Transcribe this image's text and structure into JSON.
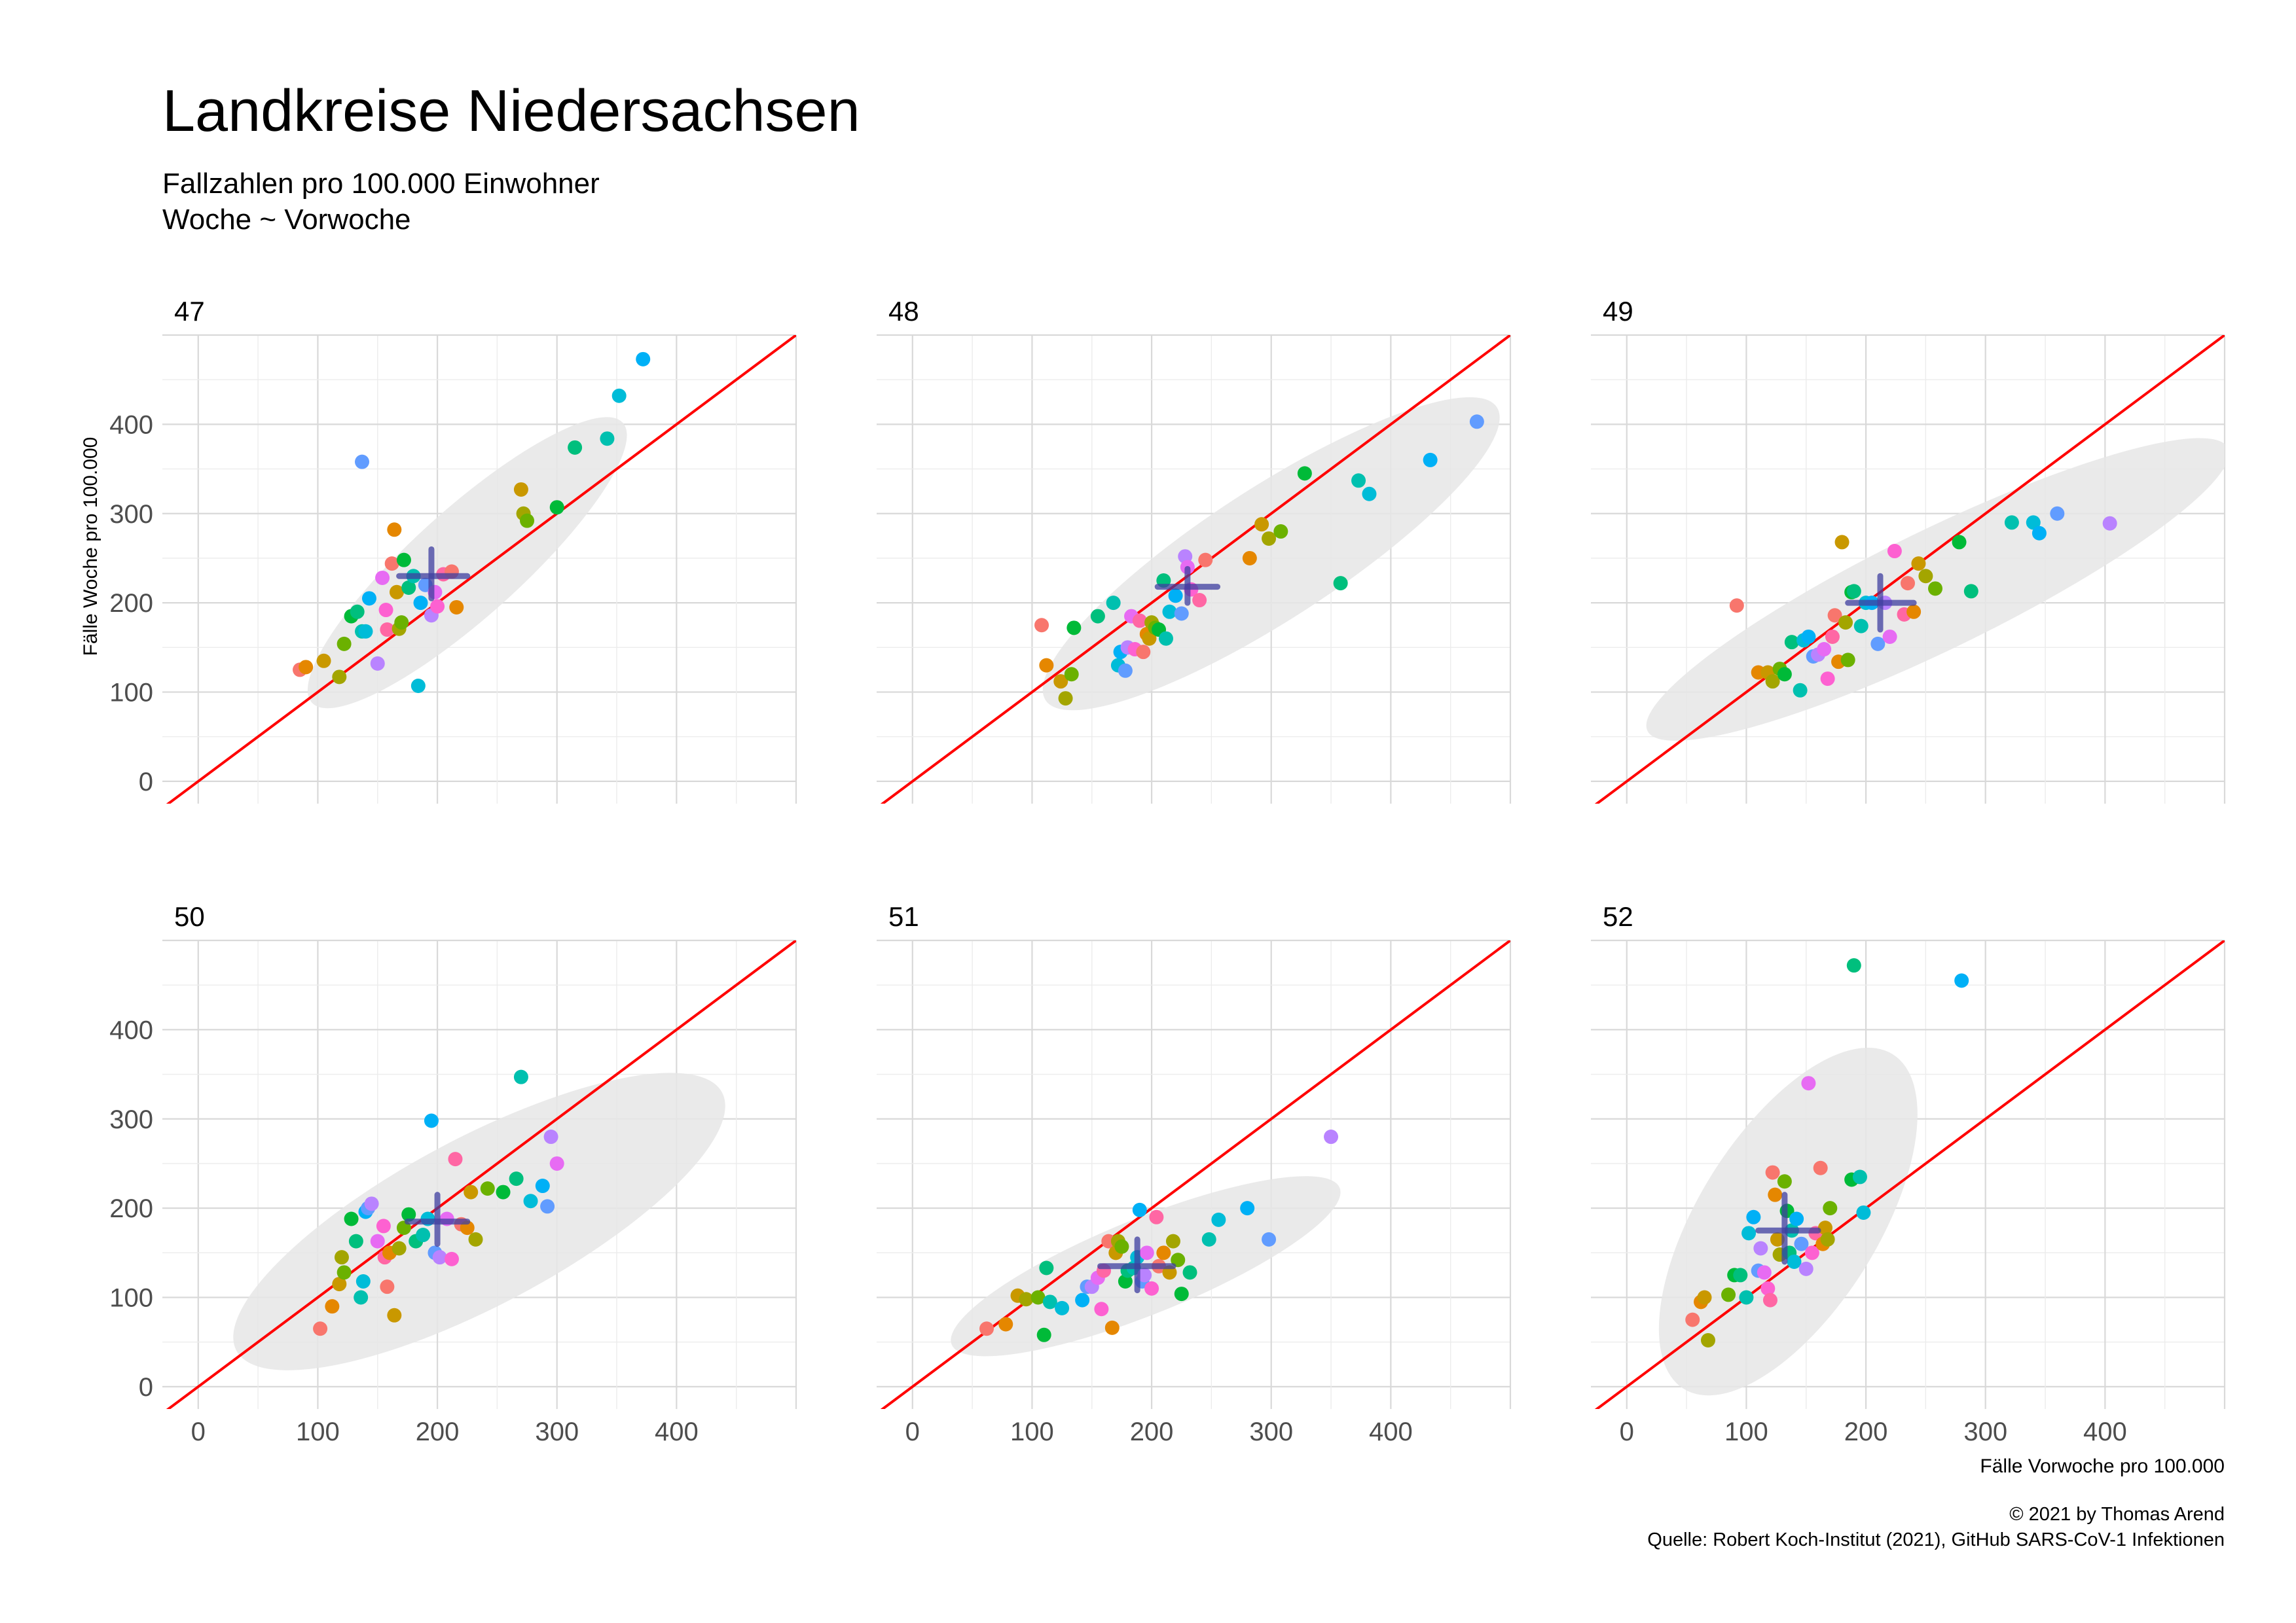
{
  "chart_data": {
    "type": "scatter",
    "title": "Landkreise Niedersachsen",
    "subtitle": [
      "Fallzahlen pro 100.000 Einwohner",
      "Woche ~ Vorwoche"
    ],
    "xlabel": "Fälle Vorwoche pro 100.000",
    "ylabel": "Fälle Woche pro 100.000",
    "xlim": [
      -30,
      500
    ],
    "ylim": [
      -25,
      500
    ],
    "x_ticks": [
      0,
      100,
      200,
      300,
      400
    ],
    "y_ticks": [
      0,
      100,
      200,
      300,
      400
    ],
    "reference_line": "y = x",
    "grid": true,
    "legend": "none",
    "line_color": "#ff0000",
    "ellipse_color": "#e6e6e6",
    "cross_color": "#3f3fa0",
    "caption": [
      "© 2021 by Thomas Arend",
      "Quelle: Robert Koch-Institut (2021), GitHub SARS-CoV-1 Infektionen"
    ],
    "colors": [
      "#f8766d",
      "#e58700",
      "#c99800",
      "#a3a500",
      "#6bb100",
      "#00ba38",
      "#00bf7d",
      "#00c0af",
      "#00bcd8",
      "#00b0f6",
      "#619cff",
      "#b983ff",
      "#e76bf3",
      "#fd61d1",
      "#ff67a4"
    ],
    "panels": [
      {
        "label": "47",
        "mean": [
          195,
          230
        ],
        "cross": [
          [
            168,
            225
          ],
          [
            205,
            260
          ]
        ],
        "ellipse": {
          "cx": 225,
          "cy": 245,
          "rx": 175,
          "ry": 45,
          "angle": 42
        },
        "points": [
          [
            85,
            125
          ],
          [
            90,
            128
          ],
          [
            105,
            135
          ],
          [
            118,
            117
          ],
          [
            122,
            154
          ],
          [
            128,
            185
          ],
          [
            133,
            190
          ],
          [
            137,
            168
          ],
          [
            140,
            168
          ],
          [
            143,
            205
          ],
          [
            137,
            358
          ],
          [
            150,
            132
          ],
          [
            154,
            228
          ],
          [
            157,
            192
          ],
          [
            158,
            170
          ],
          [
            162,
            244
          ],
          [
            164,
            282
          ],
          [
            166,
            212
          ],
          [
            168,
            171
          ],
          [
            170,
            178
          ],
          [
            172,
            248
          ],
          [
            176,
            217
          ],
          [
            180,
            230
          ],
          [
            184,
            107
          ],
          [
            186,
            200
          ],
          [
            190,
            220
          ],
          [
            195,
            186
          ],
          [
            198,
            212
          ],
          [
            200,
            196
          ],
          [
            205,
            232
          ],
          [
            212,
            235
          ],
          [
            216,
            195
          ],
          [
            270,
            327
          ],
          [
            272,
            300
          ],
          [
            275,
            292
          ],
          [
            300,
            307
          ],
          [
            315,
            374
          ],
          [
            342,
            384
          ],
          [
            352,
            432
          ],
          [
            372,
            473
          ]
        ]
      },
      {
        "label": "48",
        "mean": [
          230,
          218
        ],
        "cross": [
          [
            205,
            255
          ],
          [
            200,
            238
          ]
        ],
        "ellipse": {
          "cx": 300,
          "cy": 255,
          "rx": 225,
          "ry": 55,
          "angle": 33
        },
        "points": [
          [
            108,
            175
          ],
          [
            112,
            130
          ],
          [
            124,
            112
          ],
          [
            128,
            93
          ],
          [
            133,
            120
          ],
          [
            135,
            172
          ],
          [
            155,
            185
          ],
          [
            168,
            200
          ],
          [
            172,
            130
          ],
          [
            174,
            145
          ],
          [
            178,
            124
          ],
          [
            180,
            150
          ],
          [
            183,
            185
          ],
          [
            186,
            148
          ],
          [
            190,
            180
          ],
          [
            193,
            145
          ],
          [
            196,
            165
          ],
          [
            198,
            160
          ],
          [
            200,
            178
          ],
          [
            203,
            172
          ],
          [
            206,
            170
          ],
          [
            210,
            225
          ],
          [
            212,
            160
          ],
          [
            215,
            190
          ],
          [
            220,
            208
          ],
          [
            225,
            188
          ],
          [
            228,
            252
          ],
          [
            230,
            240
          ],
          [
            233,
            215
          ],
          [
            240,
            203
          ],
          [
            245,
            248
          ],
          [
            282,
            250
          ],
          [
            292,
            288
          ],
          [
            298,
            272
          ],
          [
            308,
            280
          ],
          [
            328,
            345
          ],
          [
            358,
            222
          ],
          [
            373,
            337
          ],
          [
            382,
            322
          ],
          [
            433,
            360
          ],
          [
            472,
            403
          ]
        ]
      },
      {
        "label": "49",
        "mean": [
          212,
          200
        ],
        "cross": [
          [
            185,
            240
          ],
          [
            170,
            230
          ]
        ],
        "ellipse": {
          "cx": 260,
          "cy": 215,
          "rx": 270,
          "ry": 50,
          "angle": 26
        },
        "points": [
          [
            92,
            197
          ],
          [
            110,
            122
          ],
          [
            118,
            122
          ],
          [
            122,
            112
          ],
          [
            128,
            126
          ],
          [
            132,
            120
          ],
          [
            138,
            156
          ],
          [
            145,
            102
          ],
          [
            148,
            158
          ],
          [
            152,
            162
          ],
          [
            156,
            140
          ],
          [
            160,
            142
          ],
          [
            165,
            148
          ],
          [
            168,
            115
          ],
          [
            172,
            162
          ],
          [
            174,
            186
          ],
          [
            177,
            134
          ],
          [
            180,
            268
          ],
          [
            183,
            178
          ],
          [
            185,
            136
          ],
          [
            188,
            212
          ],
          [
            190,
            213
          ],
          [
            196,
            174
          ],
          [
            200,
            200
          ],
          [
            205,
            200
          ],
          [
            210,
            154
          ],
          [
            216,
            200
          ],
          [
            220,
            162
          ],
          [
            224,
            258
          ],
          [
            232,
            187
          ],
          [
            235,
            222
          ],
          [
            240,
            190
          ],
          [
            244,
            244
          ],
          [
            250,
            230
          ],
          [
            258,
            216
          ],
          [
            278,
            268
          ],
          [
            288,
            213
          ],
          [
            322,
            290
          ],
          [
            340,
            290
          ],
          [
            345,
            278
          ],
          [
            360,
            300
          ],
          [
            404,
            289
          ]
        ]
      },
      {
        "label": "50",
        "mean": [
          200,
          185
        ],
        "cross": [
          [
            175,
            225
          ],
          [
            160,
            215
          ]
        ],
        "ellipse": {
          "cx": 235,
          "cy": 185,
          "rx": 230,
          "ry": 70,
          "angle": 28
        },
        "points": [
          [
            102,
            65
          ],
          [
            112,
            90
          ],
          [
            118,
            115
          ],
          [
            120,
            145
          ],
          [
            122,
            128
          ],
          [
            128,
            188
          ],
          [
            132,
            163
          ],
          [
            136,
            100
          ],
          [
            138,
            118
          ],
          [
            140,
            196
          ],
          [
            142,
            200
          ],
          [
            145,
            205
          ],
          [
            150,
            163
          ],
          [
            155,
            180
          ],
          [
            156,
            145
          ],
          [
            158,
            112
          ],
          [
            160,
            150
          ],
          [
            164,
            80
          ],
          [
            168,
            155
          ],
          [
            172,
            178
          ],
          [
            176,
            193
          ],
          [
            182,
            163
          ],
          [
            188,
            170
          ],
          [
            192,
            188
          ],
          [
            195,
            298
          ],
          [
            198,
            150
          ],
          [
            202,
            145
          ],
          [
            208,
            188
          ],
          [
            212,
            143
          ],
          [
            215,
            255
          ],
          [
            220,
            182
          ],
          [
            225,
            178
          ],
          [
            228,
            218
          ],
          [
            232,
            165
          ],
          [
            242,
            222
          ],
          [
            255,
            218
          ],
          [
            266,
            233
          ],
          [
            270,
            347
          ],
          [
            278,
            208
          ],
          [
            288,
            225
          ],
          [
            292,
            202
          ],
          [
            295,
            280
          ],
          [
            300,
            250
          ]
        ]
      },
      {
        "label": "51",
        "mean": [
          188,
          135
        ],
        "cross": [
          [
            157,
            218
          ],
          [
            108,
            165
          ]
        ],
        "ellipse": {
          "cx": 195,
          "cy": 135,
          "rx": 175,
          "ry": 40,
          "angle": 22
        },
        "points": [
          [
            62,
            65
          ],
          [
            78,
            70
          ],
          [
            88,
            102
          ],
          [
            95,
            98
          ],
          [
            105,
            100
          ],
          [
            110,
            58
          ],
          [
            112,
            133
          ],
          [
            115,
            95
          ],
          [
            125,
            88
          ],
          [
            142,
            97
          ],
          [
            146,
            112
          ],
          [
            150,
            112
          ],
          [
            155,
            122
          ],
          [
            158,
            87
          ],
          [
            160,
            130
          ],
          [
            164,
            163
          ],
          [
            167,
            66
          ],
          [
            170,
            150
          ],
          [
            172,
            163
          ],
          [
            175,
            157
          ],
          [
            178,
            118
          ],
          [
            180,
            130
          ],
          [
            185,
            133
          ],
          [
            188,
            145
          ],
          [
            190,
            198
          ],
          [
            192,
            118
          ],
          [
            194,
            125
          ],
          [
            196,
            150
          ],
          [
            200,
            110
          ],
          [
            204,
            190
          ],
          [
            206,
            135
          ],
          [
            210,
            150
          ],
          [
            215,
            128
          ],
          [
            218,
            163
          ],
          [
            222,
            142
          ],
          [
            225,
            104
          ],
          [
            232,
            128
          ],
          [
            248,
            165
          ],
          [
            256,
            187
          ],
          [
            280,
            200
          ],
          [
            298,
            165
          ],
          [
            350,
            280
          ]
        ]
      },
      {
        "label": "52",
        "mean": [
          132,
          175
        ],
        "cross": [
          [
            110,
            160
          ],
          [
            140,
            215
          ]
        ],
        "ellipse": {
          "cx": 135,
          "cy": 185,
          "rx": 165,
          "ry": 75,
          "angle": 58
        },
        "points": [
          [
            55,
            75
          ],
          [
            62,
            95
          ],
          [
            65,
            100
          ],
          [
            68,
            52
          ],
          [
            85,
            103
          ],
          [
            90,
            125
          ],
          [
            95,
            125
          ],
          [
            100,
            100
          ],
          [
            102,
            172
          ],
          [
            106,
            190
          ],
          [
            110,
            130
          ],
          [
            112,
            155
          ],
          [
            115,
            128
          ],
          [
            118,
            110
          ],
          [
            120,
            97
          ],
          [
            122,
            240
          ],
          [
            124,
            215
          ],
          [
            126,
            165
          ],
          [
            128,
            148
          ],
          [
            132,
            230
          ],
          [
            134,
            197
          ],
          [
            136,
            150
          ],
          [
            138,
            175
          ],
          [
            140,
            140
          ],
          [
            142,
            188
          ],
          [
            146,
            160
          ],
          [
            150,
            132
          ],
          [
            152,
            340
          ],
          [
            155,
            150
          ],
          [
            158,
            172
          ],
          [
            162,
            245
          ],
          [
            164,
            160
          ],
          [
            166,
            178
          ],
          [
            168,
            165
          ],
          [
            170,
            200
          ],
          [
            188,
            232
          ],
          [
            190,
            472
          ],
          [
            195,
            235
          ],
          [
            198,
            195
          ],
          [
            280,
            455
          ]
        ]
      }
    ]
  }
}
